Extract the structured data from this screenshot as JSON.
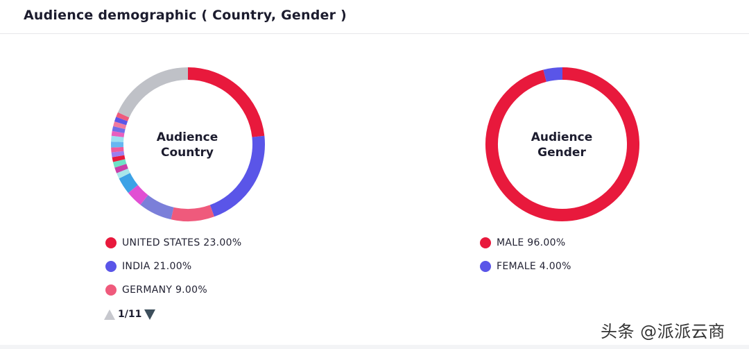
{
  "header": {
    "title": "Audience demographic ( Country, Gender )"
  },
  "chart_data": [
    {
      "type": "pie",
      "subtype": "donut",
      "center_label": [
        "Audience",
        "Country"
      ],
      "colors_note": "segments clockwise from 12 o'clock",
      "segments": [
        {
          "name": "UNITED STATES",
          "value": 23.0,
          "color": "#e8193c"
        },
        {
          "name": "INDIA",
          "value": 21.0,
          "color": "#5a55e8"
        },
        {
          "name": "GERMANY",
          "value": 9.0,
          "color": "#ef5a7c"
        },
        {
          "name": "",
          "value": 7.0,
          "color": "#7b7fd9"
        },
        {
          "name": "",
          "value": 3.5,
          "color": "#e14fd3"
        },
        {
          "name": "",
          "value": 3.5,
          "color": "#3ca2e6"
        },
        {
          "name": "",
          "value": 1.2,
          "color": "#a8e6ea"
        },
        {
          "name": "",
          "value": 1.2,
          "color": "#c93fa8"
        },
        {
          "name": "",
          "value": 1.2,
          "color": "#6ee2c6"
        },
        {
          "name": "",
          "value": 1.0,
          "color": "#e8193c"
        },
        {
          "name": "",
          "value": 1.0,
          "color": "#9b7ff0"
        },
        {
          "name": "",
          "value": 1.0,
          "color": "#ef5a9c"
        },
        {
          "name": "",
          "value": 1.2,
          "color": "#67b7f2"
        },
        {
          "name": "",
          "value": 1.2,
          "color": "#9be0f0"
        },
        {
          "name": "",
          "value": 1.0,
          "color": "#e85fbf"
        },
        {
          "name": "",
          "value": 1.0,
          "color": "#6f6ee8"
        },
        {
          "name": "",
          "value": 1.0,
          "color": "#f07aa0"
        },
        {
          "name": "",
          "value": 1.0,
          "color": "#5a55e8"
        },
        {
          "name": "",
          "value": 1.0,
          "color": "#ef5a7c"
        },
        {
          "name": "",
          "value": 18.0,
          "color": "#bfc1c7"
        }
      ],
      "legend": [
        {
          "label": "UNITED STATES 23.00%",
          "color": "#e8193c"
        },
        {
          "label": "INDIA 21.00%",
          "color": "#5a55e8"
        },
        {
          "label": "GERMANY 9.00%",
          "color": "#ef5a7c"
        }
      ],
      "pager": "1/11"
    },
    {
      "type": "pie",
      "subtype": "donut",
      "center_label": [
        "Audience",
        "Gender"
      ],
      "segments": [
        {
          "name": "MALE",
          "value": 96.0,
          "color": "#e8193c"
        },
        {
          "name": "FEMALE",
          "value": 4.0,
          "color": "#5a55e8"
        }
      ],
      "legend": [
        {
          "label": "MALE 96.00%",
          "color": "#e8193c"
        },
        {
          "label": "FEMALE 4.00%",
          "color": "#5a55e8"
        }
      ]
    }
  ],
  "watermark": "头条 @派派云商"
}
